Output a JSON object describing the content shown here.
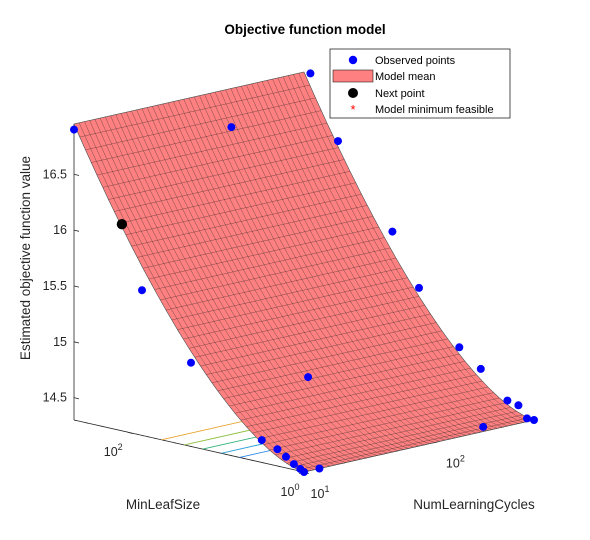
{
  "chart_data": {
    "type": "surface3d",
    "title": "Objective function model",
    "zlabel": "Estimated objective function value",
    "xlabel": "MinLeafSize",
    "ylabel": "NumLearningCycles",
    "x_scale": "log",
    "y_scale": "log",
    "xlim": [
      1,
      400
    ],
    "ylim": [
      10,
      500
    ],
    "zlim": [
      14.3,
      16.95
    ],
    "z_ticks": [
      {
        "value": 14.5,
        "label": "14.5"
      },
      {
        "value": 15,
        "label": "15"
      },
      {
        "value": 15.5,
        "label": "15.5"
      },
      {
        "value": 16,
        "label": "16"
      },
      {
        "value": 16.5,
        "label": "16.5"
      }
    ],
    "x_ticks": [
      {
        "value": 1,
        "base": "10",
        "exp": "0"
      },
      {
        "value": 100,
        "base": "10",
        "exp": "2"
      }
    ],
    "y_ticks": [
      {
        "value": 10,
        "base": "10",
        "exp": "1"
      },
      {
        "value": 100,
        "base": "10",
        "exp": "2"
      }
    ],
    "surface": {
      "model": "z = 14.3 + 2.65 * (log10(MinLeafSize)/log10(400))^1.6",
      "color": "#ff8080",
      "edge_color": "#000000"
    },
    "observed_points": [
      {
        "MinLeafSize": 400,
        "NumLearningCycles": 10,
        "z": 16.9
      },
      {
        "MinLeafSize": 339,
        "NumLearningCycles": 500,
        "z": 16.95
      },
      {
        "MinLeafSize": 215,
        "NumLearningCycles": 97,
        "z": 16.7
      },
      {
        "MinLeafSize": 165,
        "NumLearningCycles": 500,
        "z": 16.4
      },
      {
        "MinLeafSize": 68,
        "NumLearningCycles": 10,
        "z": 15.6
      },
      {
        "MinLeafSize": 40,
        "NumLearningCycles": 500,
        "z": 15.7
      },
      {
        "MinLeafSize": 20,
        "NumLearningCycles": 500,
        "z": 15.25
      },
      {
        "MinLeafSize": 19,
        "NumLearningCycles": 10,
        "z": 15.05
      },
      {
        "MinLeafSize": 7,
        "NumLearningCycles": 500,
        "z": 14.8
      },
      {
        "MinLeafSize": 4,
        "NumLearningCycles": 500,
        "z": 14.65
      },
      {
        "MinLeafSize": 9,
        "NumLearningCycles": 45,
        "z": 14.8
      },
      {
        "MinLeafSize": 3,
        "NumLearningCycles": 10,
        "z": 14.5
      },
      {
        "MinLeafSize": 2,
        "NumLearningCycles": 500,
        "z": 14.42
      },
      {
        "MinLeafSize": 1.5,
        "NumLearningCycles": 500,
        "z": 14.4
      },
      {
        "MinLeafSize": 1.2,
        "NumLearningCycles": 500,
        "z": 14.3
      },
      {
        "MinLeafSize": 2,
        "NumLearningCycles": 10,
        "z": 14.45
      },
      {
        "MinLeafSize": 1.6,
        "NumLearningCycles": 10,
        "z": 14.4
      },
      {
        "MinLeafSize": 1.3,
        "NumLearningCycles": 10,
        "z": 14.35
      },
      {
        "MinLeafSize": 1.1,
        "NumLearningCycles": 10,
        "z": 14.32
      },
      {
        "MinLeafSize": 1,
        "NumLearningCycles": 10,
        "z": 14.3
      },
      {
        "MinLeafSize": 1,
        "NumLearningCycles": 13,
        "z": 14.3
      },
      {
        "MinLeafSize": 1.3,
        "NumLearningCycles": 250,
        "z": 14.3
      },
      {
        "MinLeafSize": 1,
        "NumLearningCycles": 500,
        "z": 14.3
      }
    ],
    "next_point": {
      "MinLeafSize": 115,
      "NumLearningCycles": 10,
      "z": 16.15
    },
    "legend": {
      "placement": "top-right",
      "entries": [
        {
          "label": "Observed points",
          "marker": "dot",
          "color": "#0000ff"
        },
        {
          "label": "Model mean",
          "marker": "patch",
          "color": "#ff8080"
        },
        {
          "label": "Next point",
          "marker": "dot",
          "color": "#000000"
        },
        {
          "label": "Model minimum feasible",
          "marker": "asterisk",
          "color": "#ff0000"
        }
      ]
    },
    "contours": {
      "placement": "floor",
      "colors": [
        "#e7a42d",
        "#8fbf3e",
        "#2fb37a",
        "#2aa0d8",
        "#2f86e8"
      ]
    }
  }
}
